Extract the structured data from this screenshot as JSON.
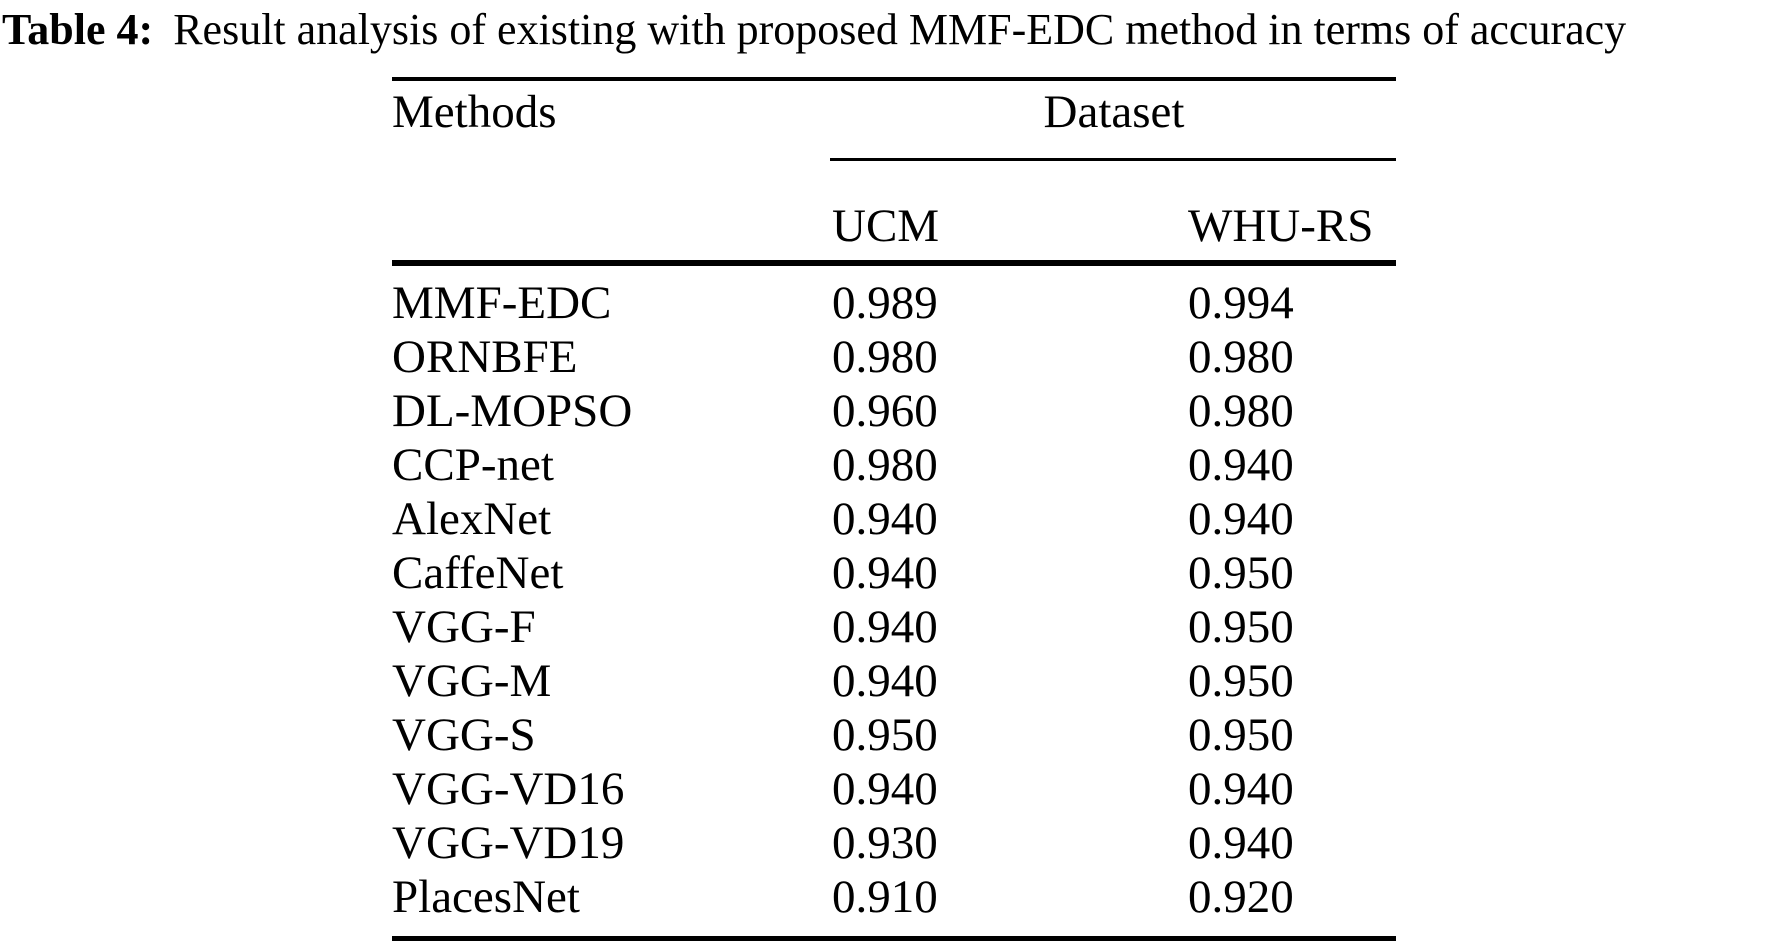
{
  "caption": {
    "label": "Table 4:",
    "text": "Result analysis of existing with proposed MMF-EDC method in terms of accuracy"
  },
  "table": {
    "col1_header": "Methods",
    "group_header": "Dataset",
    "sub_headers": [
      "UCM",
      "WHU-RS"
    ],
    "rows": [
      {
        "method": "MMF-EDC",
        "ucm": "0.989",
        "whu_rs": "0.994"
      },
      {
        "method": "ORNBFE",
        "ucm": "0.980",
        "whu_rs": "0.980"
      },
      {
        "method": "DL-MOPSO",
        "ucm": "0.960",
        "whu_rs": "0.980"
      },
      {
        "method": "CCP-net",
        "ucm": "0.980",
        "whu_rs": "0.940"
      },
      {
        "method": "AlexNet",
        "ucm": "0.940",
        "whu_rs": "0.940"
      },
      {
        "method": "CaffeNet",
        "ucm": "0.940",
        "whu_rs": "0.950"
      },
      {
        "method": "VGG-F",
        "ucm": "0.940",
        "whu_rs": "0.950"
      },
      {
        "method": "VGG-M",
        "ucm": "0.940",
        "whu_rs": "0.950"
      },
      {
        "method": "VGG-S",
        "ucm": "0.950",
        "whu_rs": "0.950"
      },
      {
        "method": "VGG-VD16",
        "ucm": "0.940",
        "whu_rs": "0.940"
      },
      {
        "method": "VGG-VD19",
        "ucm": "0.930",
        "whu_rs": "0.940"
      },
      {
        "method": "PlacesNet",
        "ucm": "0.910",
        "whu_rs": "0.920"
      }
    ]
  },
  "colors": {
    "text": "#000000",
    "background": "#ffffff",
    "rule": "#000000"
  }
}
